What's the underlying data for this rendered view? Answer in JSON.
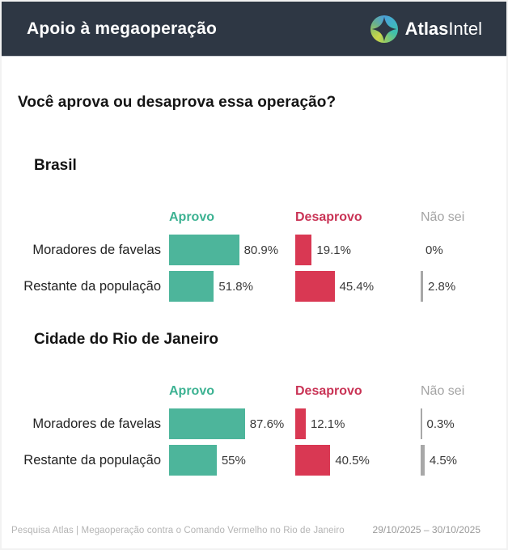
{
  "header": {
    "title": "Apoio à megaoperação",
    "brand": {
      "bold": "Atlas",
      "light": "Intel"
    }
  },
  "question": "Você aprova ou desaprova essa operação?",
  "colors": {
    "header_bg": "#2e3744",
    "approve_text": "#3cb292",
    "approve_bar": "#4db59b",
    "disapprove_text": "#c93355",
    "disapprove_bar": "#d93853",
    "unknown_text": "#a3a3a3",
    "unknown_bar": "#a8a8a8"
  },
  "chart_data": [
    {
      "type": "bar",
      "title": "Brasil",
      "categories": [
        "Moradores de favelas",
        "Restante da população"
      ],
      "series": [
        {
          "name": "Aprovo",
          "values": [
            80.9,
            51.8
          ],
          "labels": [
            "80.9%",
            "51.8%"
          ]
        },
        {
          "name": "Desaprovo",
          "values": [
            19.1,
            45.4
          ],
          "labels": [
            "19.1%",
            "45.4%"
          ]
        },
        {
          "name": "Não sei",
          "values": [
            0,
            2.8
          ],
          "labels": [
            "0%",
            "2.8%"
          ]
        }
      ],
      "xlim": [
        0,
        100
      ],
      "orientation": "horizontal",
      "grid": false,
      "legend_position": "column-headers"
    },
    {
      "type": "bar",
      "title": "Cidade do Rio de Janeiro",
      "categories": [
        "Moradores de favelas",
        "Restante da população"
      ],
      "series": [
        {
          "name": "Aprovo",
          "values": [
            87.6,
            55
          ],
          "labels": [
            "87.6%",
            "55%"
          ]
        },
        {
          "name": "Desaprovo",
          "values": [
            12.1,
            40.5
          ],
          "labels": [
            "12.1%",
            "40.5%"
          ]
        },
        {
          "name": "Não sei",
          "values": [
            0.3,
            4.5
          ],
          "labels": [
            "0.3%",
            "4.5%"
          ]
        }
      ],
      "xlim": [
        0,
        100
      ],
      "orientation": "horizontal",
      "grid": false,
      "legend_position": "column-headers"
    }
  ],
  "footer": {
    "left": "Pesquisa Atlas | Megaoperação contra o Comando Vermelho no Rio de Janeiro",
    "right": "29/10/2025 – 30/10/2025"
  }
}
